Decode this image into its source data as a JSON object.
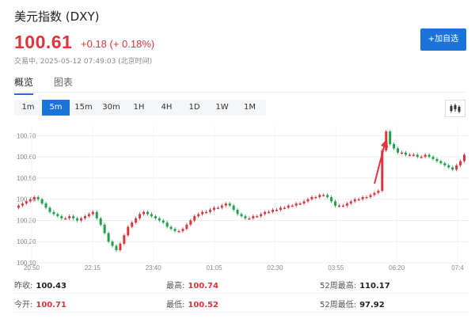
{
  "header": {
    "title": "美元指数 (DXY)",
    "price": "100.61",
    "change": "+0.18 (+ 0.18%)",
    "status": "交易中, 2025-05-12 07:49:03 (北京时间)",
    "add_button": "+加自选"
  },
  "tabs": [
    "概览",
    "图表"
  ],
  "ranges": [
    "1m",
    "5m",
    "15m",
    "30m",
    "1H",
    "4H",
    "1D",
    "1W",
    "1M"
  ],
  "active_range": "5m",
  "colors": {
    "up": "#e0333d",
    "down": "#1aa34a",
    "accent": "#1a73d9"
  },
  "chart_data": {
    "type": "candlestick",
    "y_ticks": [
      "100.70",
      "100.60",
      "100.50",
      "100.40",
      "100.30",
      "100.20",
      "100.10"
    ],
    "x_ticks": [
      "20:50",
      "22:15",
      "23:40",
      "01:05",
      "02:30",
      "03:55",
      "06:20",
      "07:4"
    ],
    "ylim": [
      100.1,
      100.75
    ],
    "grid": true,
    "annotation": "red arrow pointing to jump near 05:50",
    "close_series": [
      100.37,
      100.38,
      100.39,
      100.4,
      100.41,
      100.4,
      100.38,
      100.36,
      100.34,
      100.33,
      100.32,
      100.31,
      100.31,
      100.32,
      100.31,
      100.3,
      100.31,
      100.32,
      100.33,
      100.34,
      100.31,
      100.28,
      100.24,
      100.2,
      100.18,
      100.16,
      100.19,
      100.23,
      100.27,
      100.29,
      100.31,
      100.33,
      100.34,
      100.33,
      100.32,
      100.31,
      100.3,
      100.29,
      100.27,
      100.26,
      100.25,
      100.25,
      100.26,
      100.28,
      100.3,
      100.32,
      100.33,
      100.34,
      100.34,
      100.35,
      100.36,
      100.36,
      100.37,
      100.38,
      100.37,
      100.35,
      100.33,
      100.32,
      100.31,
      100.31,
      100.32,
      100.32,
      100.33,
      100.34,
      100.34,
      100.35,
      100.35,
      100.36,
      100.36,
      100.37,
      100.37,
      100.38,
      100.38,
      100.39,
      100.4,
      100.41,
      100.41,
      100.42,
      100.42,
      100.41,
      100.39,
      100.37,
      100.37,
      100.37,
      100.38,
      100.39,
      100.4,
      100.4,
      100.41,
      100.41,
      100.42,
      100.43,
      100.44,
      100.63,
      100.72,
      100.66,
      100.64,
      100.62,
      100.62,
      100.61,
      100.61,
      100.61,
      100.6,
      100.6,
      100.61,
      100.6,
      100.59,
      100.58,
      100.57,
      100.56,
      100.55,
      100.54,
      100.56,
      100.58,
      100.61
    ]
  },
  "stats": [
    [
      {
        "label": "昨收:",
        "value": "100.43",
        "tone": "dark"
      },
      {
        "label": "最高:",
        "value": "100.74",
        "tone": "red"
      },
      {
        "label": "52周最高:",
        "value": "110.17",
        "tone": "dark"
      }
    ],
    [
      {
        "label": "今开:",
        "value": "100.71",
        "tone": "red"
      },
      {
        "label": "最低:",
        "value": "100.52",
        "tone": "red"
      },
      {
        "label": "52周最低:",
        "value": "97.92",
        "tone": "dark"
      }
    ]
  ]
}
